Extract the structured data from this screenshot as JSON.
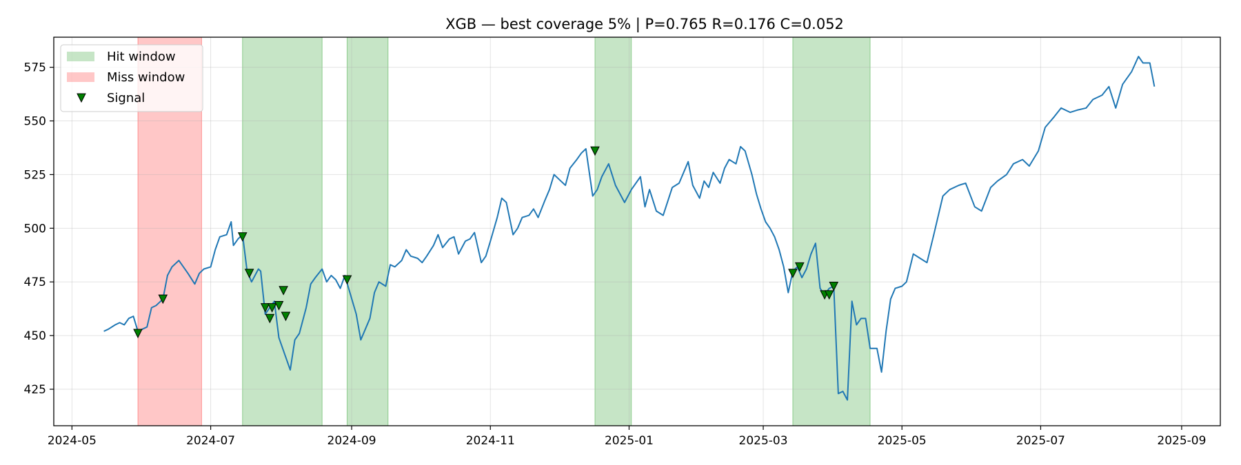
{
  "chart_data": {
    "type": "line",
    "title": "XGB — best coverage 5% | P=0.765 R=0.176 C=0.052",
    "xlabel": "",
    "ylabel": "",
    "xlim": [
      "2024-04-23",
      "2025-09-18"
    ],
    "ylim": [
      408,
      589
    ],
    "grid": true,
    "legend_position": "top-left",
    "x_ticks": [
      "2024-05",
      "2024-07",
      "2024-09",
      "2024-11",
      "2025-01",
      "2025-03",
      "2025-05",
      "2025-07",
      "2025-09"
    ],
    "y_ticks": [
      425,
      450,
      475,
      500,
      525,
      550,
      575
    ],
    "colors": {
      "line": "#1f77b4",
      "hit": "#2ca02c",
      "miss": "#ff0000",
      "signal_fill": "#008000",
      "signal_edge": "#000000"
    },
    "legend": [
      {
        "label": "Hit window",
        "kind": "hit"
      },
      {
        "label": "Miss window",
        "kind": "miss"
      },
      {
        "label": "Signal",
        "kind": "signal"
      }
    ],
    "windows": [
      {
        "kind": "miss",
        "start": "2024-05-30",
        "end": "2024-06-27"
      },
      {
        "kind": "hit",
        "start": "2024-07-15",
        "end": "2024-08-19"
      },
      {
        "kind": "hit",
        "start": "2024-08-30",
        "end": "2024-09-17"
      },
      {
        "kind": "hit",
        "start": "2024-12-17",
        "end": "2025-01-02"
      },
      {
        "kind": "hit",
        "start": "2025-03-14",
        "end": "2025-04-17"
      }
    ],
    "series": [
      {
        "values": [
          [
            "2024-05-15",
            452
          ],
          [
            "2024-05-17",
            453
          ],
          [
            "2024-05-20",
            455
          ],
          [
            "2024-05-22",
            456
          ],
          [
            "2024-05-24",
            455
          ],
          [
            "2024-05-26",
            458
          ],
          [
            "2024-05-28",
            459
          ],
          [
            "2024-05-30",
            452
          ],
          [
            "2024-06-03",
            454
          ],
          [
            "2024-06-05",
            463
          ],
          [
            "2024-06-07",
            464
          ],
          [
            "2024-06-10",
            467
          ],
          [
            "2024-06-12",
            478
          ],
          [
            "2024-06-14",
            482
          ],
          [
            "2024-06-17",
            485
          ],
          [
            "2024-06-19",
            482
          ],
          [
            "2024-06-21",
            479
          ],
          [
            "2024-06-24",
            474
          ],
          [
            "2024-06-26",
            479
          ],
          [
            "2024-06-28",
            481
          ],
          [
            "2024-07-01",
            482
          ],
          [
            "2024-07-03",
            490
          ],
          [
            "2024-07-05",
            496
          ],
          [
            "2024-07-08",
            497
          ],
          [
            "2024-07-10",
            503
          ],
          [
            "2024-07-11",
            492
          ],
          [
            "2024-07-13",
            495
          ],
          [
            "2024-07-15",
            497
          ],
          [
            "2024-07-17",
            480
          ],
          [
            "2024-07-19",
            475
          ],
          [
            "2024-07-22",
            481
          ],
          [
            "2024-07-23",
            480
          ],
          [
            "2024-07-25",
            460
          ],
          [
            "2024-07-27",
            463
          ],
          [
            "2024-07-29",
            466
          ],
          [
            "2024-07-31",
            449
          ],
          [
            "2024-08-03",
            440
          ],
          [
            "2024-08-05",
            434
          ],
          [
            "2024-08-07",
            448
          ],
          [
            "2024-08-09",
            451
          ],
          [
            "2024-08-12",
            463
          ],
          [
            "2024-08-14",
            474
          ],
          [
            "2024-08-16",
            477
          ],
          [
            "2024-08-19",
            481
          ],
          [
            "2024-08-21",
            475
          ],
          [
            "2024-08-23",
            478
          ],
          [
            "2024-08-25",
            476
          ],
          [
            "2024-08-27",
            472
          ],
          [
            "2024-08-29",
            478
          ],
          [
            "2024-09-03",
            460
          ],
          [
            "2024-09-05",
            448
          ],
          [
            "2024-09-07",
            453
          ],
          [
            "2024-09-09",
            458
          ],
          [
            "2024-09-11",
            470
          ],
          [
            "2024-09-13",
            475
          ],
          [
            "2024-09-16",
            473
          ],
          [
            "2024-09-18",
            483
          ],
          [
            "2024-09-20",
            482
          ],
          [
            "2024-09-23",
            485
          ],
          [
            "2024-09-25",
            490
          ],
          [
            "2024-09-27",
            487
          ],
          [
            "2024-09-30",
            486
          ],
          [
            "2024-10-02",
            484
          ],
          [
            "2024-10-04",
            487
          ],
          [
            "2024-10-07",
            492
          ],
          [
            "2024-10-09",
            497
          ],
          [
            "2024-10-11",
            491
          ],
          [
            "2024-10-14",
            495
          ],
          [
            "2024-10-16",
            496
          ],
          [
            "2024-10-18",
            488
          ],
          [
            "2024-10-21",
            494
          ],
          [
            "2024-10-23",
            495
          ],
          [
            "2024-10-25",
            498
          ],
          [
            "2024-10-28",
            484
          ],
          [
            "2024-10-30",
            487
          ],
          [
            "2024-11-01",
            494
          ],
          [
            "2024-11-04",
            505
          ],
          [
            "2024-11-06",
            514
          ],
          [
            "2024-11-08",
            512
          ],
          [
            "2024-11-11",
            497
          ],
          [
            "2024-11-13",
            500
          ],
          [
            "2024-11-15",
            505
          ],
          [
            "2024-11-18",
            506
          ],
          [
            "2024-11-20",
            509
          ],
          [
            "2024-11-22",
            505
          ],
          [
            "2024-11-25",
            513
          ],
          [
            "2024-11-27",
            518
          ],
          [
            "2024-11-29",
            525
          ],
          [
            "2024-12-02",
            522
          ],
          [
            "2024-12-04",
            520
          ],
          [
            "2024-12-06",
            528
          ],
          [
            "2024-12-09",
            532
          ],
          [
            "2024-12-11",
            535
          ],
          [
            "2024-12-13",
            537
          ],
          [
            "2024-12-16",
            515
          ],
          [
            "2024-12-18",
            518
          ],
          [
            "2024-12-20",
            524
          ],
          [
            "2024-12-23",
            530
          ],
          [
            "2024-12-26",
            520
          ],
          [
            "2024-12-30",
            512
          ],
          [
            "2025-01-02",
            518
          ],
          [
            "2025-01-06",
            524
          ],
          [
            "2025-01-08",
            510
          ],
          [
            "2025-01-10",
            518
          ],
          [
            "2025-01-13",
            508
          ],
          [
            "2025-01-16",
            506
          ],
          [
            "2025-01-20",
            519
          ],
          [
            "2025-01-23",
            521
          ],
          [
            "2025-01-27",
            531
          ],
          [
            "2025-01-29",
            520
          ],
          [
            "2025-02-01",
            514
          ],
          [
            "2025-02-03",
            522
          ],
          [
            "2025-02-05",
            519
          ],
          [
            "2025-02-07",
            526
          ],
          [
            "2025-02-10",
            521
          ],
          [
            "2025-02-12",
            528
          ],
          [
            "2025-02-14",
            532
          ],
          [
            "2025-02-17",
            530
          ],
          [
            "2025-02-19",
            538
          ],
          [
            "2025-02-21",
            536
          ],
          [
            "2025-02-24",
            525
          ],
          [
            "2025-02-26",
            516
          ],
          [
            "2025-02-28",
            509
          ],
          [
            "2025-03-02",
            503
          ],
          [
            "2025-03-04",
            500
          ],
          [
            "2025-03-06",
            496
          ],
          [
            "2025-03-08",
            490
          ],
          [
            "2025-03-10",
            482
          ],
          [
            "2025-03-12",
            470
          ],
          [
            "2025-03-14",
            480
          ],
          [
            "2025-03-16",
            482
          ],
          [
            "2025-03-18",
            477
          ],
          [
            "2025-03-20",
            481
          ],
          [
            "2025-03-22",
            488
          ],
          [
            "2025-03-24",
            493
          ],
          [
            "2025-03-26",
            472
          ],
          [
            "2025-03-28",
            469
          ],
          [
            "2025-03-30",
            472
          ],
          [
            "2025-04-01",
            473
          ],
          [
            "2025-04-03",
            423
          ],
          [
            "2025-04-05",
            424
          ],
          [
            "2025-04-07",
            420
          ],
          [
            "2025-04-09",
            466
          ],
          [
            "2025-04-11",
            455
          ],
          [
            "2025-04-13",
            458
          ],
          [
            "2025-04-15",
            458
          ],
          [
            "2025-04-17",
            444
          ],
          [
            "2025-04-20",
            444
          ],
          [
            "2025-04-22",
            433
          ],
          [
            "2025-04-24",
            452
          ],
          [
            "2025-04-26",
            467
          ],
          [
            "2025-04-28",
            472
          ],
          [
            "2025-05-01",
            473
          ],
          [
            "2025-05-03",
            475
          ],
          [
            "2025-05-06",
            488
          ],
          [
            "2025-05-09",
            486
          ],
          [
            "2025-05-12",
            484
          ],
          [
            "2025-05-15",
            497
          ],
          [
            "2025-05-19",
            515
          ],
          [
            "2025-05-22",
            518
          ],
          [
            "2025-05-26",
            520
          ],
          [
            "2025-05-29",
            521
          ],
          [
            "2025-06-02",
            510
          ],
          [
            "2025-06-05",
            508
          ],
          [
            "2025-06-09",
            519
          ],
          [
            "2025-06-12",
            522
          ],
          [
            "2025-06-16",
            525
          ],
          [
            "2025-06-19",
            530
          ],
          [
            "2025-06-23",
            532
          ],
          [
            "2025-06-26",
            529
          ],
          [
            "2025-06-30",
            536
          ],
          [
            "2025-07-03",
            547
          ],
          [
            "2025-07-07",
            552
          ],
          [
            "2025-07-10",
            556
          ],
          [
            "2025-07-14",
            554
          ],
          [
            "2025-07-17",
            555
          ],
          [
            "2025-07-21",
            556
          ],
          [
            "2025-07-24",
            560
          ],
          [
            "2025-07-28",
            562
          ],
          [
            "2025-07-31",
            566
          ],
          [
            "2025-08-03",
            556
          ],
          [
            "2025-08-06",
            567
          ],
          [
            "2025-08-10",
            573
          ],
          [
            "2025-08-13",
            580
          ],
          [
            "2025-08-15",
            577
          ],
          [
            "2025-08-18",
            577
          ],
          [
            "2025-08-20",
            566
          ]
        ]
      }
    ],
    "signals": [
      [
        "2024-05-30",
        451
      ],
      [
        "2024-06-10",
        467
      ],
      [
        "2024-07-15",
        496
      ],
      [
        "2024-07-18",
        479
      ],
      [
        "2024-07-25",
        463
      ],
      [
        "2024-07-27",
        458
      ],
      [
        "2024-07-28",
        463
      ],
      [
        "2024-07-31",
        464
      ],
      [
        "2024-08-02",
        471
      ],
      [
        "2024-08-03",
        459
      ],
      [
        "2024-08-30",
        476
      ],
      [
        "2024-12-17",
        536
      ],
      [
        "2025-03-14",
        479
      ],
      [
        "2025-03-17",
        482
      ],
      [
        "2025-03-28",
        469
      ],
      [
        "2025-03-30",
        469
      ],
      [
        "2025-04-01",
        473
      ]
    ]
  }
}
